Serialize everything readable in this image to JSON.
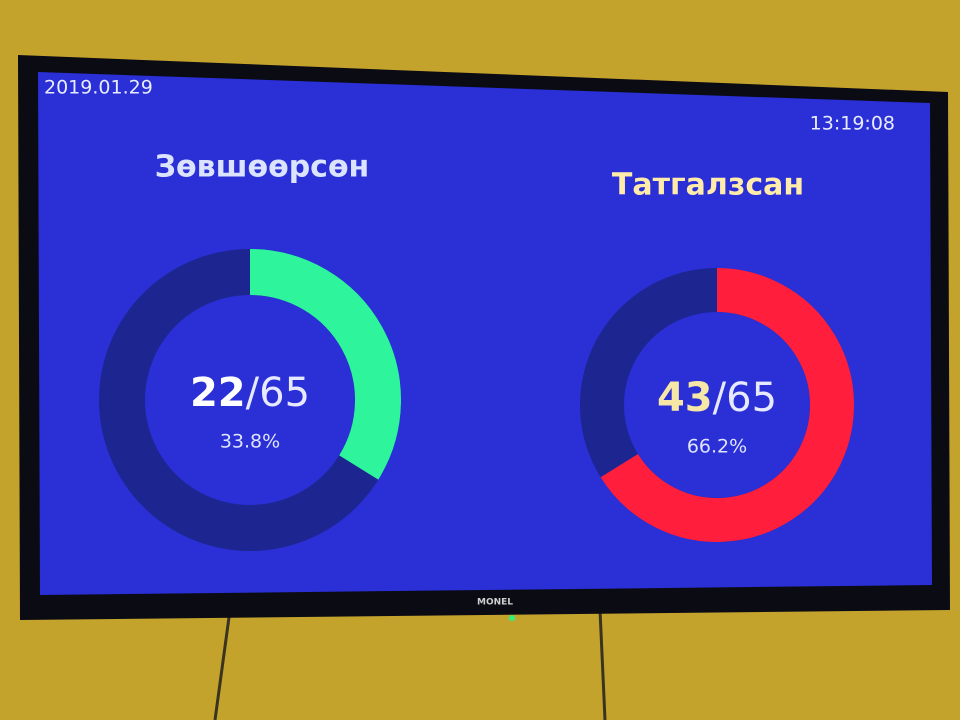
{
  "date": "2019.01.29",
  "time": "13:19:08",
  "brand": "MONEL",
  "panels": [
    {
      "title": "Зөвшөөрсөн",
      "count": 22,
      "separator": "/",
      "total": 65,
      "percent": "33.8%",
      "color": "#2ef59c"
    },
    {
      "title": "Татгалзсан",
      "count": 43,
      "separator": "/",
      "total": 65,
      "percent": "66.2%",
      "color": "#ff1f3d"
    }
  ]
}
